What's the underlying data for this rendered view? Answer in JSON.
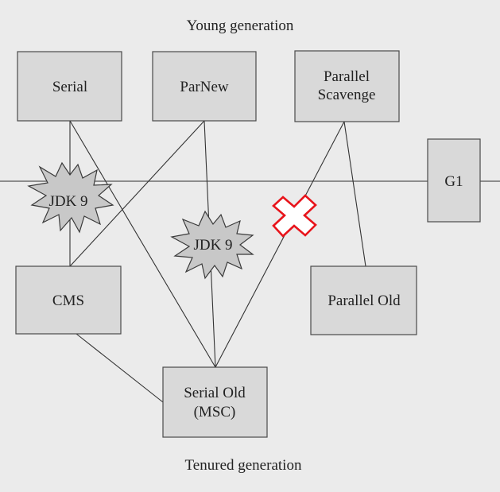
{
  "title": "Young generation",
  "footer": "Tenured generation",
  "collectors": {
    "serial": "Serial",
    "parnew": "ParNew",
    "parallel_scavenge": [
      "Parallel",
      "Scavenge"
    ],
    "g1": "G1",
    "cms": "CMS",
    "parallel_old": "Parallel Old",
    "serial_old": [
      "Serial Old",
      "(MSC)"
    ]
  },
  "markers": {
    "jdk9_left": "JDK 9",
    "jdk9_center": "JDK 9"
  },
  "connections": [
    {
      "from": "Serial",
      "to": "CMS",
      "status": "removed in JDK 9"
    },
    {
      "from": "Serial",
      "to": "Serial Old (MSC)"
    },
    {
      "from": "ParNew",
      "to": "CMS"
    },
    {
      "from": "ParNew",
      "to": "Serial Old (MSC)",
      "status": "removed in JDK 9"
    },
    {
      "from": "Parallel Scavenge",
      "to": "Serial Old (MSC)",
      "status": "deprecated (red cross)"
    },
    {
      "from": "Parallel Scavenge",
      "to": "Parallel Old"
    },
    {
      "from": "CMS",
      "to": "Serial Old (MSC)"
    }
  ],
  "colors": {
    "background": "#ebebeb",
    "box_fill": "#d9d9d9",
    "cross": "#e8141b"
  }
}
